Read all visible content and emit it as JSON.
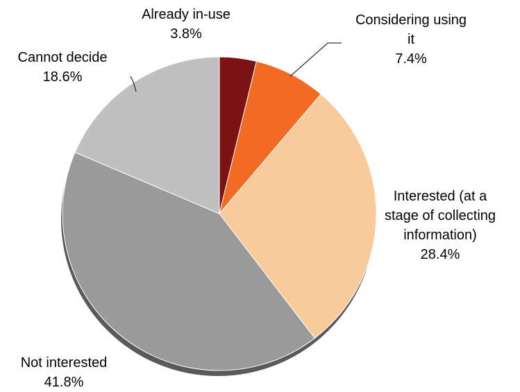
{
  "chart_data": {
    "type": "pie",
    "title": "",
    "slices": [
      {
        "name_lines": [
          "Already in-use"
        ],
        "value": 3.8,
        "label": "3.8%",
        "color": "#7B1214"
      },
      {
        "name_lines": [
          "Considering using",
          "it"
        ],
        "value": 7.4,
        "label": "7.4%",
        "color": "#F26A24"
      },
      {
        "name_lines": [
          "Interested (at a",
          "stage of collecting",
          "information)"
        ],
        "value": 28.4,
        "label": "28.4%",
        "color": "#FACB9A"
      },
      {
        "name_lines": [
          "Not interested"
        ],
        "value": 41.8,
        "label": "41.8%",
        "color": "#9A9A9A"
      },
      {
        "name_lines": [
          "Cannot decide"
        ],
        "value": 18.6,
        "label": "18.6%",
        "color": "#C0C0C0"
      }
    ],
    "start_angle": "12 o'clock",
    "direction": "clockwise",
    "legend": "none",
    "shadow_color": "#5A5A5A"
  }
}
